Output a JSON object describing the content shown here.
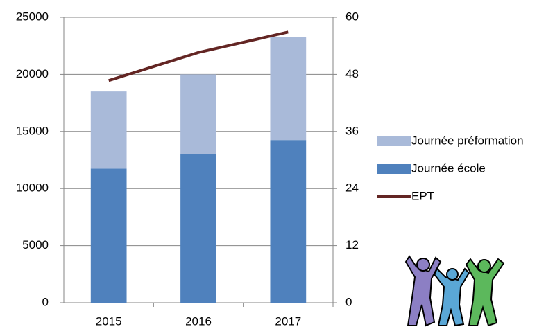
{
  "chart_data": {
    "type": "bar",
    "categories": [
      "2015",
      "2016",
      "2017"
    ],
    "series": [
      {
        "name": "Journée école",
        "color": "#4f81bd",
        "values": [
          11750,
          13000,
          14250
        ]
      },
      {
        "name": "Journée préformation",
        "color": "#a9bad9",
        "values": [
          6750,
          7000,
          9000
        ]
      },
      {
        "name": "EPT",
        "color": "#632523",
        "type": "line",
        "axis": "y2",
        "values": [
          46.7,
          52.6,
          56.9
        ]
      }
    ],
    "legend_order": [
      "Journée préformation",
      "Journée école",
      "EPT"
    ],
    "ylim": [
      0,
      25000
    ],
    "yticks": [
      0,
      5000,
      10000,
      15000,
      20000,
      25000
    ],
    "y2lim": [
      0,
      60
    ],
    "y2ticks": [
      0,
      12,
      24,
      36,
      48,
      60
    ],
    "grid": true,
    "legend": "right"
  }
}
